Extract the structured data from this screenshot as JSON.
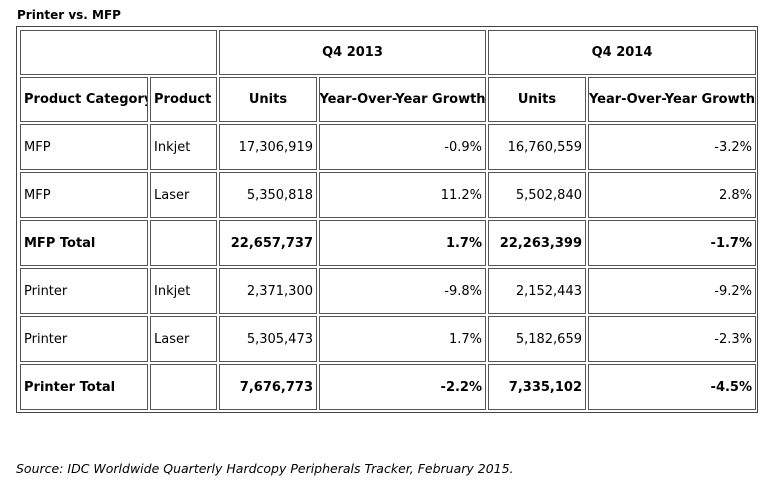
{
  "title": "Printer vs. MFP",
  "periods": [
    "Q4 2013",
    "Q4 2014"
  ],
  "headers": [
    "Product Category",
    "Product",
    "Units",
    "Year-Over-Year Growth",
    "Units",
    "Year-Over-Year Growth"
  ],
  "rows": [
    {
      "category": "MFP",
      "product": "Inkjet",
      "units_2013": "17,306,919",
      "yoy_2013": "-0.9%",
      "units_2014": "16,760,559",
      "yoy_2014": "-3.2%",
      "total": false
    },
    {
      "category": "MFP",
      "product": "Laser",
      "units_2013": "5,350,818",
      "yoy_2013": "11.2%",
      "units_2014": "5,502,840",
      "yoy_2014": "2.8%",
      "total": false
    },
    {
      "category": "MFP Total",
      "product": "",
      "units_2013": "22,657,737",
      "yoy_2013": "1.7%",
      "units_2014": "22,263,399",
      "yoy_2014": "-1.7%",
      "total": true
    },
    {
      "category": "Printer",
      "product": "Inkjet",
      "units_2013": "2,371,300",
      "yoy_2013": "-9.8%",
      "units_2014": "2,152,443",
      "yoy_2014": "-9.2%",
      "total": false
    },
    {
      "category": "Printer",
      "product": "Laser",
      "units_2013": "5,305,473",
      "yoy_2013": "1.7%",
      "units_2014": "5,182,659",
      "yoy_2014": "-2.3%",
      "total": false
    },
    {
      "category": "Printer Total",
      "product": "",
      "units_2013": "7,676,773",
      "yoy_2013": "-2.2%",
      "units_2014": "7,335,102",
      "yoy_2014": "-4.5%",
      "total": true
    }
  ],
  "source": "Source: IDC Worldwide Quarterly Hardcopy Peripherals Tracker, February 2015.",
  "colors": {
    "border": "#555555",
    "text": "#000000",
    "background": "#ffffff"
  }
}
